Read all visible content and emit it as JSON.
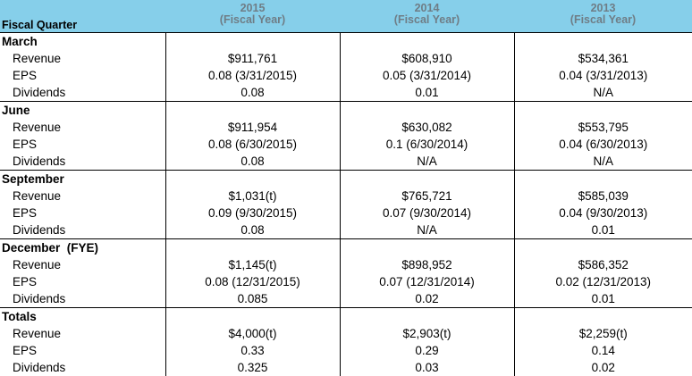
{
  "table": {
    "header": {
      "label": "Fiscal Quarter",
      "columns": [
        {
          "year": "2015",
          "note": "(Fiscal Year)"
        },
        {
          "year": "2014",
          "note": "(Fiscal Year)"
        },
        {
          "year": "2013",
          "note": "(Fiscal Year)"
        }
      ]
    },
    "sections": [
      {
        "title": "March",
        "rows": [
          {
            "label": "Revenue",
            "cells": [
              "$911,761",
              "$608,910",
              "$534,361"
            ]
          },
          {
            "label": "EPS",
            "cells": [
              "0.08 (3/31/2015)",
              "0.05 (3/31/2014)",
              "0.04 (3/31/2013)"
            ]
          },
          {
            "label": "Dividends",
            "cells": [
              "0.08",
              "0.01",
              "N/A"
            ]
          }
        ]
      },
      {
        "title": "June",
        "rows": [
          {
            "label": "Revenue",
            "cells": [
              "$911,954",
              "$630,082",
              "$553,795"
            ]
          },
          {
            "label": "EPS",
            "cells": [
              "0.08 (6/30/2015)",
              "0.1 (6/30/2014)",
              "0.04 (6/30/2013)"
            ]
          },
          {
            "label": "Dividends",
            "cells": [
              "0.08",
              "N/A",
              "N/A"
            ]
          }
        ]
      },
      {
        "title": "September",
        "rows": [
          {
            "label": "Revenue",
            "cells": [
              "$1,031(t)",
              "$765,721",
              "$585,039"
            ]
          },
          {
            "label": "EPS",
            "cells": [
              "0.09 (9/30/2015)",
              "0.07 (9/30/2014)",
              "0.04 (9/30/2013)"
            ]
          },
          {
            "label": "Dividends",
            "cells": [
              "0.08",
              "N/A",
              "0.01"
            ]
          }
        ]
      },
      {
        "title": "December  (FYE)",
        "rows": [
          {
            "label": "Revenue",
            "cells": [
              "$1,145(t)",
              "$898,952",
              "$586,352"
            ]
          },
          {
            "label": "EPS",
            "cells": [
              "0.08 (12/31/2015)",
              "0.07 (12/31/2014)",
              "0.02 (12/31/2013)"
            ]
          },
          {
            "label": "Dividends",
            "cells": [
              "0.085",
              "0.02",
              "0.01"
            ]
          }
        ]
      },
      {
        "title": "Totals",
        "rows": [
          {
            "label": "Revenue",
            "cells": [
              "$4,000(t)",
              "$2,903(t)",
              "$2,259(t)"
            ]
          },
          {
            "label": "EPS",
            "cells": [
              "0.33",
              "0.29",
              "0.14"
            ]
          },
          {
            "label": "Dividends",
            "cells": [
              "0.325",
              "0.03",
              "0.02"
            ]
          }
        ]
      }
    ]
  }
}
